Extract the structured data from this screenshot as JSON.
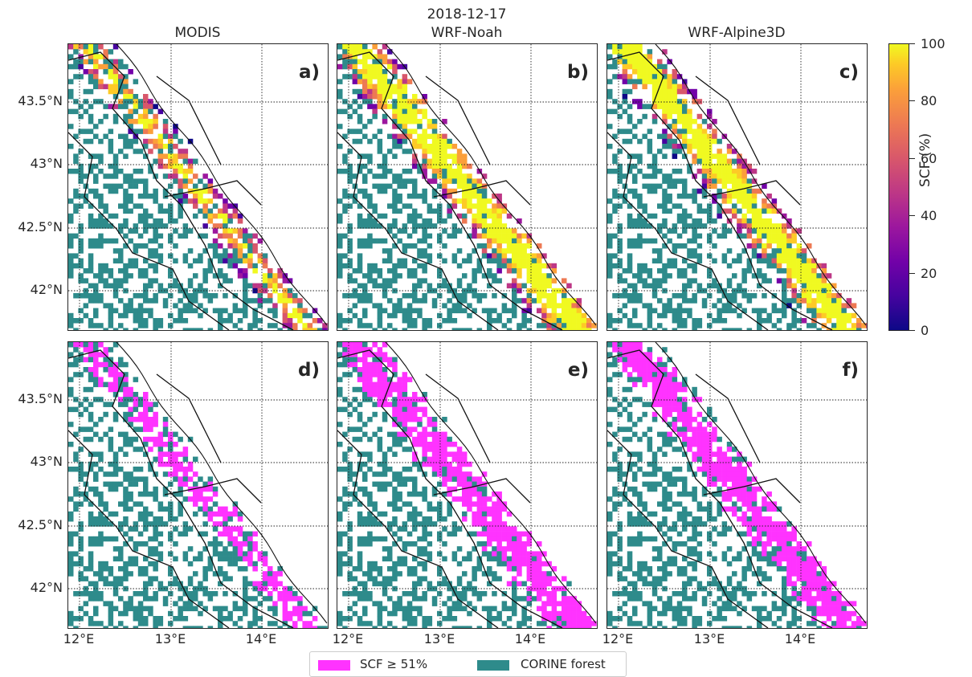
{
  "figure": {
    "date": "2018-12-17",
    "column_titles": [
      "MODIS",
      "WRF-Noah",
      "WRF-Alpine3D"
    ],
    "panel_labels": [
      "a)",
      "b)",
      "c)",
      "d)",
      "e)",
      "f)"
    ],
    "y_ticks": [
      "43.5°N",
      "43°N",
      "42.5°N",
      "42°N"
    ],
    "x_ticks": [
      "12°E",
      "13°E",
      "14°E"
    ],
    "colorbar": {
      "label": "SCF (%)",
      "ticks": [
        "0",
        "20",
        "40",
        "60",
        "80",
        "100"
      ],
      "colormap": "plasma"
    },
    "legend": {
      "snow_label": "SCF ≥ 51%",
      "forest_label": "CORINE forest"
    },
    "colors": {
      "snow_binary": "#ff33ff",
      "forest": "#2e8b8b",
      "frame": "#262626"
    }
  }
}
